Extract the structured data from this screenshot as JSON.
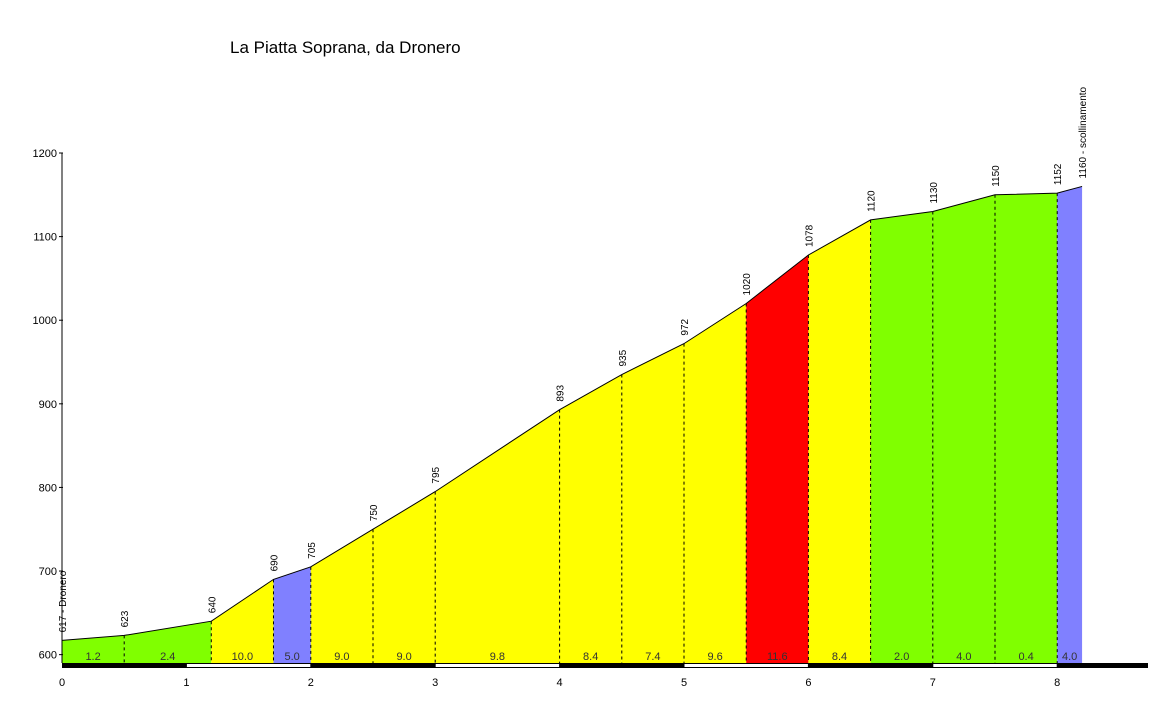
{
  "chart_data": {
    "type": "area",
    "title": "La Piatta Soprana, da Dronero",
    "xlabel": "",
    "ylabel": "",
    "xlim": [
      0,
      8.7
    ],
    "ylim": [
      590,
      1200
    ],
    "x_ticks": [
      0,
      1,
      2,
      3,
      4,
      5,
      6,
      7,
      8
    ],
    "y_ticks": [
      600,
      700,
      800,
      900,
      1000,
      1100,
      1200
    ],
    "grid": false,
    "points": [
      {
        "km": 0.0,
        "elev": 617,
        "label": "617 - Dronero"
      },
      {
        "km": 0.5,
        "elev": 623,
        "label": "623"
      },
      {
        "km": 1.2,
        "elev": 640,
        "label": "640"
      },
      {
        "km": 1.7,
        "elev": 690,
        "label": "690"
      },
      {
        "km": 2.0,
        "elev": 705,
        "label": "705"
      },
      {
        "km": 2.5,
        "elev": 750,
        "label": "750"
      },
      {
        "km": 3.0,
        "elev": 795,
        "label": "795"
      },
      {
        "km": 4.0,
        "elev": 893,
        "label": "893"
      },
      {
        "km": 4.5,
        "elev": 935,
        "label": "935"
      },
      {
        "km": 5.0,
        "elev": 972,
        "label": "972"
      },
      {
        "km": 5.5,
        "elev": 1020,
        "label": "1020"
      },
      {
        "km": 6.0,
        "elev": 1078,
        "label": "1078"
      },
      {
        "km": 6.5,
        "elev": 1120,
        "label": "1120"
      },
      {
        "km": 7.0,
        "elev": 1130,
        "label": "1130"
      },
      {
        "km": 7.5,
        "elev": 1150,
        "label": "1150"
      },
      {
        "km": 8.0,
        "elev": 1152,
        "label": "1152"
      },
      {
        "km": 8.2,
        "elev": 1160,
        "label": "1160 - scollinamento"
      }
    ],
    "segments": [
      {
        "gradient": "1.2",
        "color": "#80ff00"
      },
      {
        "gradient": "2.4",
        "color": "#80ff00"
      },
      {
        "gradient": "10.0",
        "color": "#ffff00"
      },
      {
        "gradient": "5.0",
        "color": "#8080ff"
      },
      {
        "gradient": "9.0",
        "color": "#ffff00"
      },
      {
        "gradient": "9.0",
        "color": "#ffff00"
      },
      {
        "gradient": "9.8",
        "color": "#ffff00"
      },
      {
        "gradient": "8.4",
        "color": "#ffff00"
      },
      {
        "gradient": "7.4",
        "color": "#ffff00"
      },
      {
        "gradient": "9.6",
        "color": "#ffff00"
      },
      {
        "gradient": "11.6",
        "color": "#ff0000"
      },
      {
        "gradient": "8.4",
        "color": "#ffff00"
      },
      {
        "gradient": "2.0",
        "color": "#80ff00"
      },
      {
        "gradient": "4.0",
        "color": "#80ff00"
      },
      {
        "gradient": "0.4",
        "color": "#80ff00"
      },
      {
        "gradient": "4.0",
        "color": "#8080ff"
      }
    ]
  }
}
